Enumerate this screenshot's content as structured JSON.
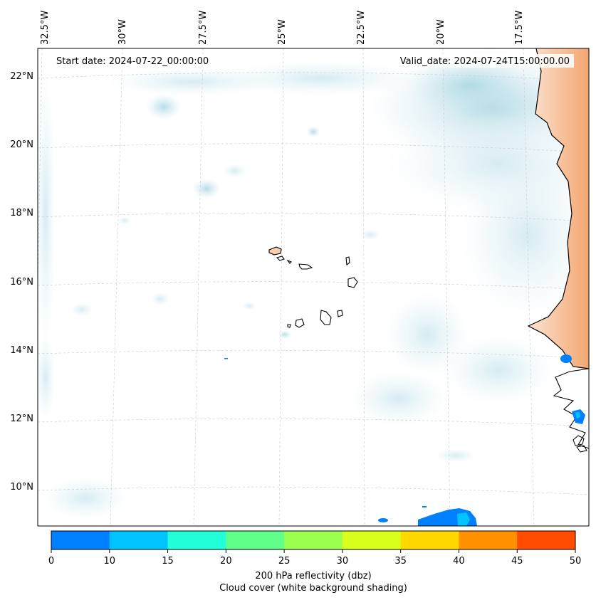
{
  "header": {
    "start_date": "Start date: 2024-07-22_00:00:00",
    "valid_date": "Valid_date: 2024-07-24T15:00:00.00"
  },
  "longitude_labels": [
    "32.5°W",
    "30°W",
    "27.5°W",
    "25°W",
    "22.5°W",
    "20°W",
    "17.5°W"
  ],
  "latitude_labels": [
    "22°N",
    "20°N",
    "18°N",
    "16°N",
    "14°N",
    "12°N",
    "10°N"
  ],
  "colorbar": {
    "ticks": [
      "0",
      "10",
      "15",
      "20",
      "25",
      "30",
      "35",
      "40",
      "45",
      "50"
    ],
    "colors": [
      "#0080ff",
      "#00c4ff",
      "#22ffd8",
      "#60ff8c",
      "#9cff50",
      "#d8ff1c",
      "#ffd800",
      "#ff9000",
      "#ff4c00"
    ],
    "label_line1": "200 hPa reflectivity (dbz)",
    "label_line2": "Cloud cover (white background shading)"
  }
}
